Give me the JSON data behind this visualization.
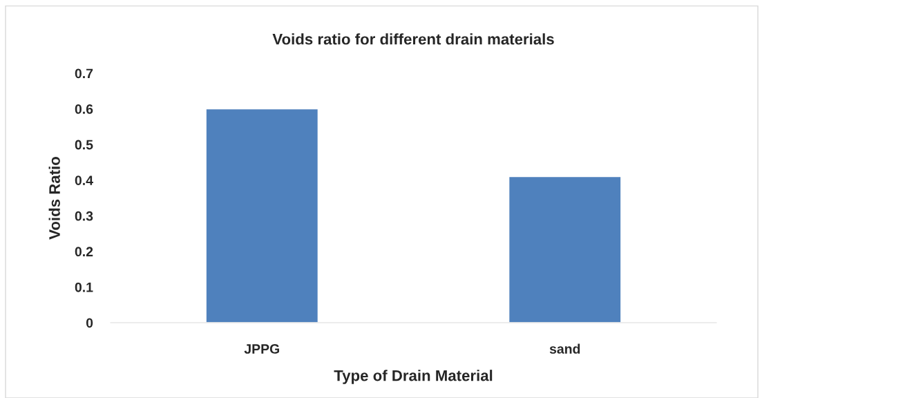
{
  "chart_data": {
    "type": "bar",
    "title": "Voids ratio for different drain materials",
    "xlabel": "Type of Drain Material",
    "ylabel": "Voids Ratio",
    "categories": [
      "JPPG",
      "sand"
    ],
    "series": [
      {
        "color": "#4f81bd",
        "values": [
          0.6,
          0.41
        ]
      }
    ],
    "ylim": [
      0,
      0.7
    ],
    "yticks": [
      0,
      0.1,
      0.2,
      0.3,
      0.4,
      0.5,
      0.6,
      0.7
    ],
    "grid": false,
    "legend": false
  }
}
